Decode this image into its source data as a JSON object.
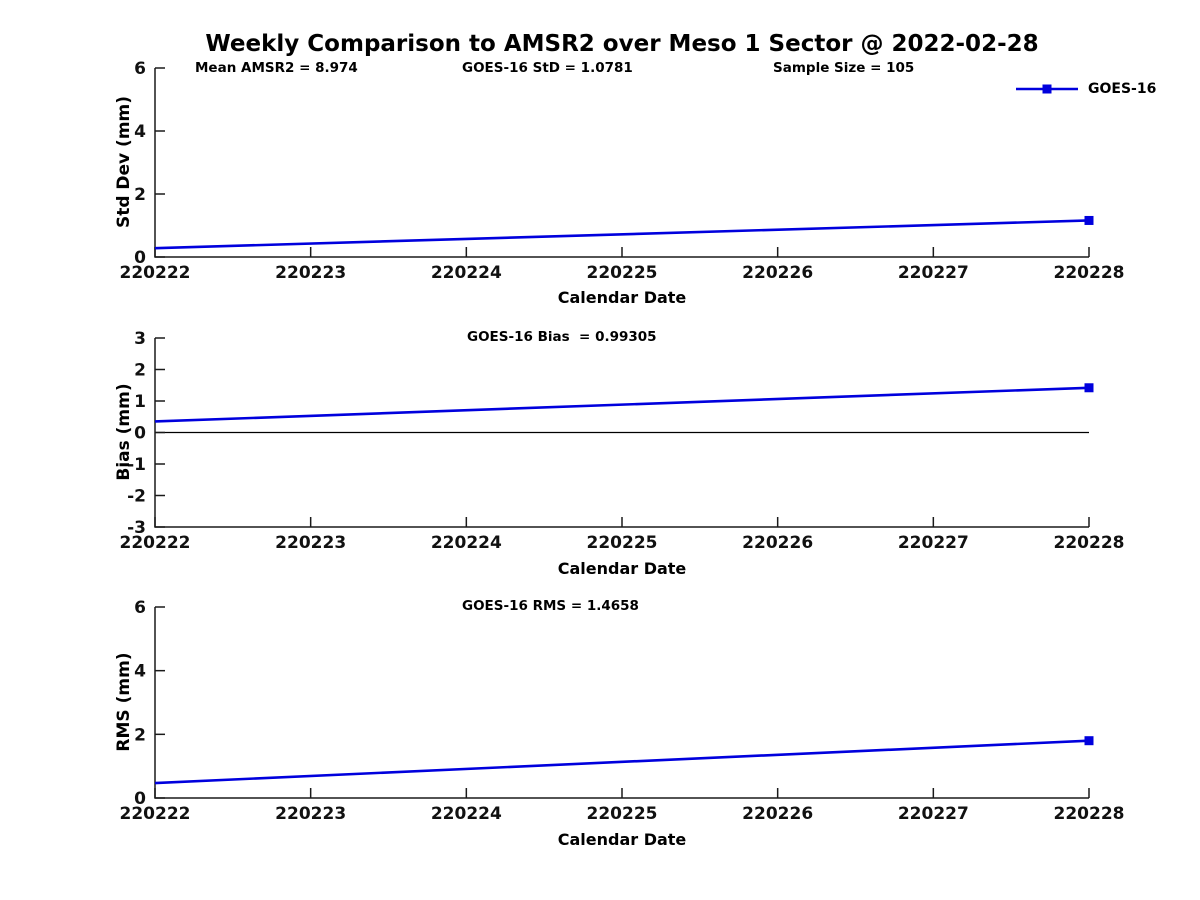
{
  "ui": {
    "colors": {
      "series": "#0000dd",
      "axis": "#1a1a1a",
      "tick_text": "#111111",
      "zero_line": "#000000",
      "background": "#ffffff"
    }
  },
  "chart_data": [
    {
      "type": "line",
      "title": "Weekly Comparison to AMSR2 over Meso 1 Sector @ 2022-02-28",
      "ylabel": "Std Dev (mm)",
      "xlabel": "Calendar Date",
      "annotations": [
        "Mean AMSR2 = 8.974",
        "GOES-16 StD = 1.0781",
        "Sample Size = 105"
      ],
      "legend": [
        "GOES-16"
      ],
      "legend_position": "top-right-outside",
      "grid": false,
      "box": false,
      "xlim": [
        220222,
        220228
      ],
      "ylim": [
        0,
        6
      ],
      "xticks": [
        220222,
        220223,
        220224,
        220225,
        220226,
        220227,
        220228
      ],
      "yticks": [
        0,
        2,
        4,
        6
      ],
      "zero_line": false,
      "series": [
        {
          "name": "GOES-16",
          "x": [
            220222,
            220228
          ],
          "y": [
            0.28,
            1.16
          ],
          "marker": "square",
          "marker_last_only": true
        }
      ]
    },
    {
      "type": "line",
      "title": "",
      "ylabel": "Bias (mm)",
      "xlabel": "Calendar Date",
      "annotations": [
        "GOES-16 Bias  = 0.99305"
      ],
      "legend": [],
      "grid": false,
      "box": false,
      "xlim": [
        220222,
        220228
      ],
      "ylim": [
        -3,
        3
      ],
      "xticks": [
        220222,
        220223,
        220224,
        220225,
        220226,
        220227,
        220228
      ],
      "yticks": [
        -3,
        -2,
        -1,
        0,
        1,
        2,
        3
      ],
      "zero_line": true,
      "series": [
        {
          "name": "GOES-16",
          "x": [
            220222,
            220228
          ],
          "y": [
            0.35,
            1.42
          ],
          "marker": "square",
          "marker_last_only": true
        }
      ]
    },
    {
      "type": "line",
      "title": "",
      "ylabel": "RMS (mm)",
      "xlabel": "Calendar Date",
      "annotations": [
        "GOES-16 RMS = 1.4658"
      ],
      "legend": [],
      "grid": false,
      "box": false,
      "xlim": [
        220222,
        220228
      ],
      "ylim": [
        0,
        6
      ],
      "xticks": [
        220222,
        220223,
        220224,
        220225,
        220226,
        220227,
        220228
      ],
      "yticks": [
        0,
        2,
        4,
        6
      ],
      "zero_line": false,
      "series": [
        {
          "name": "GOES-16",
          "x": [
            220222,
            220228
          ],
          "y": [
            0.47,
            1.8
          ],
          "marker": "square",
          "marker_last_only": true
        }
      ]
    }
  ]
}
